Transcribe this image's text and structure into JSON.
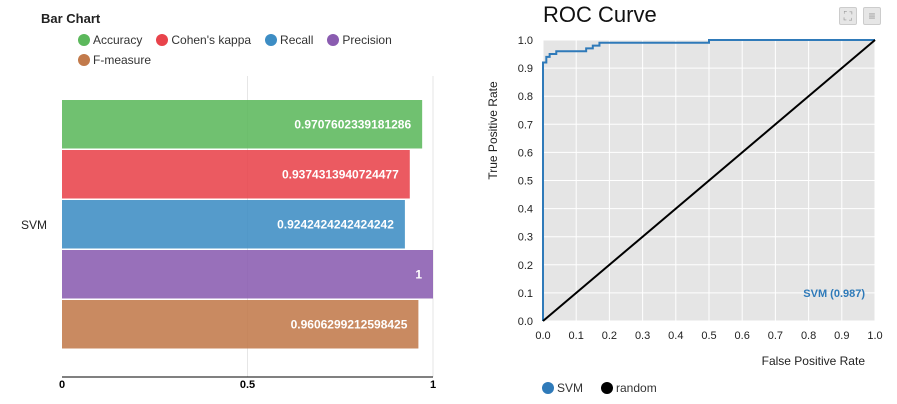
{
  "chart_data": [
    {
      "type": "bar",
      "orientation": "horizontal",
      "title": "Bar Chart",
      "categories": [
        "SVM"
      ],
      "series": [
        {
          "name": "Accuracy",
          "values": [
            0.9707602339181286
          ],
          "label": "0.9707602339181286",
          "color": "#5cb85c"
        },
        {
          "name": "Cohen's kappa",
          "values": [
            0.9374313940724477
          ],
          "label": "0.9374313940724477",
          "color": "#e8434b"
        },
        {
          "name": "Recall",
          "values": [
            0.9242424242424242
          ],
          "label": "0.9242424242424242",
          "color": "#3d8dc4"
        },
        {
          "name": "Precision",
          "values": [
            1
          ],
          "label": "1",
          "color": "#8a5cb0"
        },
        {
          "name": "F-measure",
          "values": [
            0.9606299212598425
          ],
          "label": "0.9606299212598425",
          "color": "#c27a4b"
        }
      ],
      "xlim": [
        0,
        1
      ],
      "xticks": [
        "0",
        "0.5",
        "1"
      ],
      "grid": true,
      "legend_position": "top"
    },
    {
      "type": "line",
      "title": "ROC Curve",
      "xlabel": "False Positive Rate",
      "ylabel": "True Positive Rate",
      "xlim": [
        0,
        1
      ],
      "ylim": [
        0,
        1
      ],
      "xticks": [
        "0.0",
        "0.1",
        "0.2",
        "0.3",
        "0.4",
        "0.5",
        "0.6",
        "0.7",
        "0.8",
        "0.9",
        "1.0"
      ],
      "yticks": [
        "0.0",
        "0.1",
        "0.2",
        "0.3",
        "0.4",
        "0.5",
        "0.6",
        "0.7",
        "0.8",
        "0.9",
        "1.0"
      ],
      "grid": true,
      "series": [
        {
          "name": "SVM",
          "color": "#2f7ab9",
          "annotation": "SVM (0.987)",
          "x": [
            0,
            0,
            0.01,
            0.01,
            0.02,
            0.02,
            0.04,
            0.04,
            0.13,
            0.13,
            0.15,
            0.15,
            0.17,
            0.17,
            0.5,
            0.5,
            1
          ],
          "y": [
            0,
            0.92,
            0.92,
            0.94,
            0.94,
            0.95,
            0.95,
            0.96,
            0.96,
            0.97,
            0.97,
            0.98,
            0.98,
            0.99,
            0.99,
            1,
            1
          ]
        },
        {
          "name": "random",
          "color": "#000000",
          "x": [
            0,
            1
          ],
          "y": [
            0,
            1
          ]
        }
      ],
      "legend_position": "bottom"
    }
  ],
  "toolbar": {
    "icons": [
      "expand-icon",
      "menu-icon"
    ]
  }
}
